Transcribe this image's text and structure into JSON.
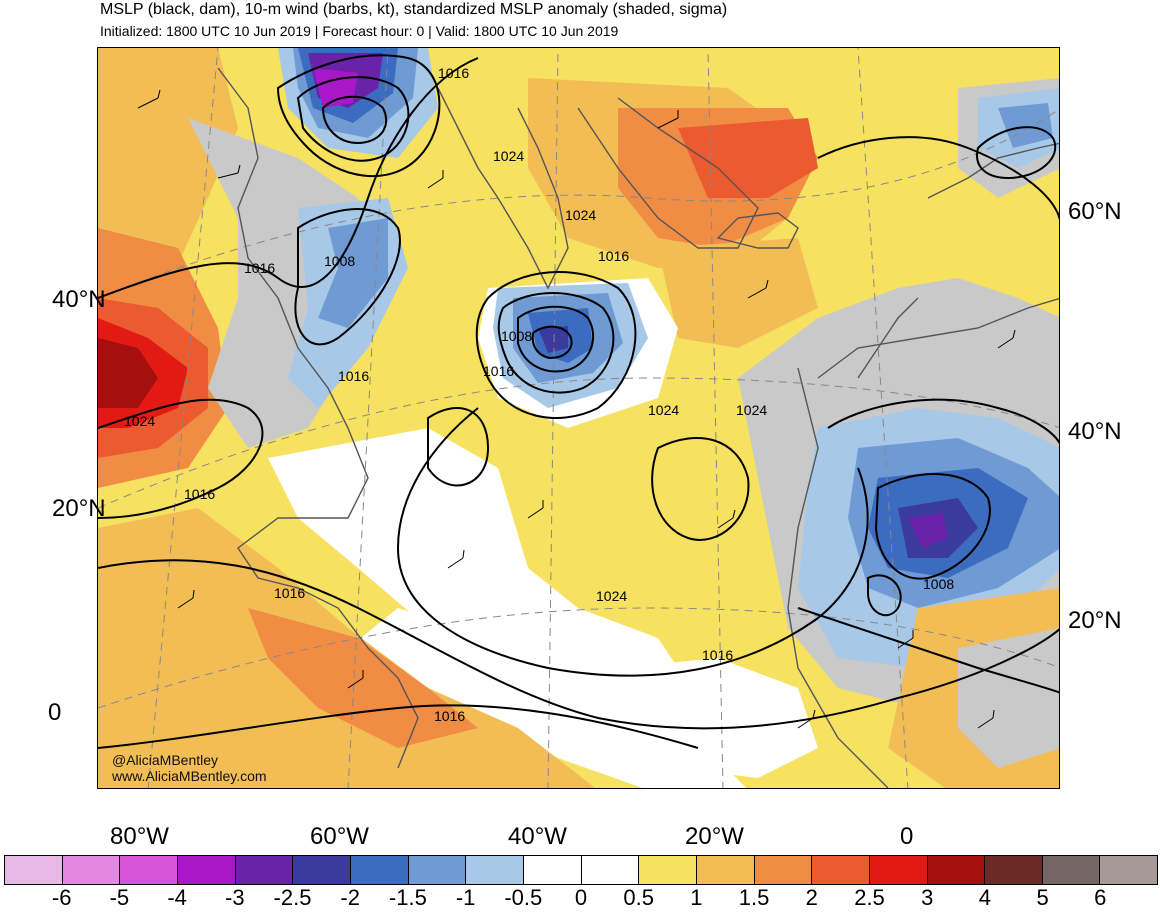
{
  "header": {
    "title": "MSLP (black, dam), 10-m wind (barbs, kt), standardized MSLP anomaly (shaded, sigma)",
    "subtitle": "Initialized: 1800 UTC 10 Jun 2019 | Forecast hour: 0 | Valid: 1800 UTC 10 Jun 2019"
  },
  "map": {
    "projection_hint": "polar stereographic North Atlantic",
    "lat_labels_left": [
      "40°N",
      "20°N",
      "0"
    ],
    "lat_labels_right": [
      "60°N",
      "40°N",
      "20°N"
    ],
    "lon_labels": [
      "80°W",
      "60°W",
      "40°W",
      "20°W",
      "0"
    ],
    "contour_labels": [
      "1016",
      "1024",
      "1024",
      "1016",
      "1008",
      "1016",
      "1008",
      "1016",
      "1024",
      "1024",
      "1024",
      "1016",
      "1016",
      "1024",
      "1016",
      "1016",
      "1008"
    ],
    "credit_line1": "@AliciaMBentley",
    "credit_line2": "www.AliciaMBentley.com",
    "colors": {
      "background_anomaly": "#f7e160",
      "contour": "#000000",
      "coast": "#555555"
    }
  },
  "colorbar": {
    "colors": [
      "#e8b8e6",
      "#e487e3",
      "#d455d8",
      "#a818c8",
      "#6a22aa",
      "#3b3b9e",
      "#3b6cc0",
      "#6f9ad4",
      "#a8c8e8",
      "#ffffff",
      "#ffffff",
      "#f7e160",
      "#f3bd55",
      "#f18c45",
      "#ec5a30",
      "#e21a14",
      "#a50f0d",
      "#6b2a26",
      "#766665",
      "#a69a98"
    ],
    "ticks": [
      "-6",
      "-5",
      "-4",
      "-3",
      "-2.5",
      "-2",
      "-1.5",
      "-1",
      "-0.5",
      "0",
      "0.5",
      "1",
      "1.5",
      "2",
      "2.5",
      "3",
      "4",
      "5",
      "6"
    ]
  }
}
